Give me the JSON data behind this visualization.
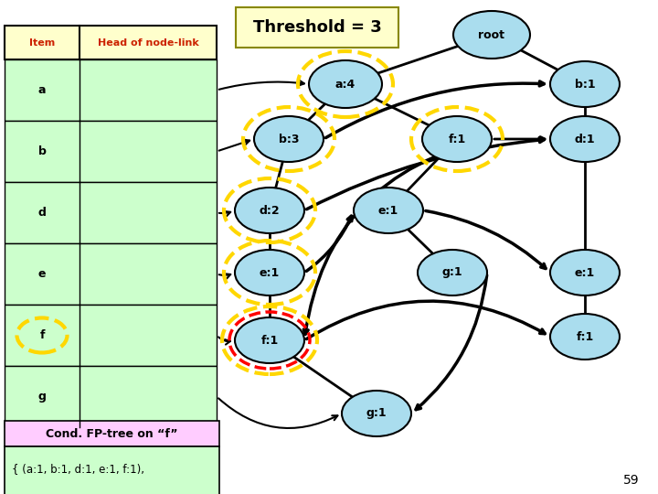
{
  "title": "Threshold = 3",
  "title_box_color": "#ffffcc",
  "title_box_border": "#888800",
  "bg_color": "#ffffff",
  "table_header_color": "#ffffcc",
  "table_cell_color": "#ccffcc",
  "table_border_color": "#000000",
  "table_header_text_color": "#cc2200",
  "table_col_headers": [
    "Item",
    "Head of node-link"
  ],
  "table_rows": [
    "a",
    "b",
    "d",
    "e",
    "f",
    "g"
  ],
  "cond_title_color": "#ffccff",
  "cond_body_color": "#ccffcc",
  "cond_title_text": "Cond. FP-tree on “f”",
  "node_fill": "#aaddee",
  "node_border": "#000000",
  "page_number": "59"
}
